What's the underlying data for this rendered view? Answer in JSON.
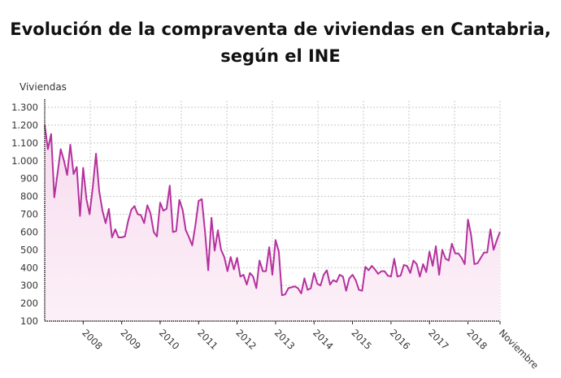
{
  "chart_data": {
    "type": "area",
    "title_line1": "Evolución de la compraventa de viviendas en Cantabria,",
    "title_line2": "según el INE",
    "ylabel": "Viviendas",
    "xlabel": "",
    "ylim": [
      100,
      1300
    ],
    "y_ticks": [
      "100",
      "200",
      "300",
      "400",
      "500",
      "600",
      "700",
      "800",
      "900",
      "1.000",
      "1.100",
      "1.200",
      "1.300"
    ],
    "y_tick_values": [
      100,
      200,
      300,
      400,
      500,
      600,
      700,
      800,
      900,
      1000,
      1100,
      1200,
      1300
    ],
    "x_tick_labels": [
      "2008",
      "2009",
      "2010",
      "2011",
      "2012",
      "2013",
      "2014",
      "2015",
      "2016",
      "2017",
      "2018",
      "Noviembre"
    ],
    "x_start": "2007-01",
    "x_end": "2018-11",
    "frequency": "monthly",
    "grid": true,
    "line_color": "#b5319e",
    "fill_color": "#f9e4f3",
    "values": [
      1200,
      1065,
      1150,
      795,
      930,
      1065,
      1000,
      920,
      1090,
      925,
      965,
      690,
      960,
      785,
      700,
      855,
      1040,
      830,
      720,
      650,
      730,
      570,
      615,
      570,
      570,
      575,
      660,
      725,
      745,
      700,
      695,
      650,
      750,
      705,
      600,
      575,
      765,
      720,
      730,
      860,
      600,
      605,
      780,
      725,
      610,
      570,
      525,
      640,
      775,
      785,
      600,
      385,
      680,
      495,
      610,
      500,
      460,
      380,
      460,
      390,
      455,
      350,
      360,
      305,
      370,
      350,
      285,
      440,
      380,
      380,
      515,
      360,
      555,
      490,
      245,
      250,
      285,
      290,
      295,
      285,
      255,
      340,
      275,
      285,
      370,
      310,
      300,
      360,
      385,
      305,
      330,
      320,
      360,
      350,
      270,
      340,
      360,
      330,
      275,
      270,
      405,
      385,
      410,
      390,
      365,
      380,
      380,
      355,
      350,
      450,
      350,
      355,
      415,
      410,
      370,
      440,
      420,
      350,
      420,
      375,
      490,
      410,
      520,
      360,
      500,
      450,
      440,
      535,
      480,
      480,
      455,
      420,
      670,
      580,
      420,
      425,
      455,
      485,
      485,
      615,
      500,
      555,
      600
    ]
  }
}
